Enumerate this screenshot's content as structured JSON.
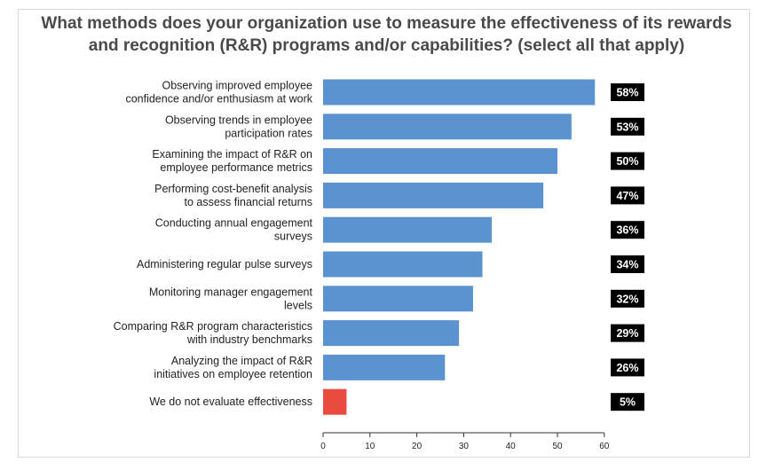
{
  "chart_data": {
    "type": "bar",
    "orientation": "horizontal",
    "title": "What methods does your organization use to measure the effectiveness of its rewards and recognition (R&R) programs and/or capabilities? (select all that apply)",
    "categories": [
      [
        "Observing improved employee",
        "confidence and/or enthusiasm at work"
      ],
      [
        "Observing trends in employee",
        "participation rates"
      ],
      [
        "Examining the impact of R&R on",
        "employee performance metrics"
      ],
      [
        "Performing cost-benefit analysis",
        "to assess financial returns"
      ],
      [
        "Conducting annual engagement",
        "surveys"
      ],
      [
        "Administering regular pulse surveys"
      ],
      [
        "Monitoring manager engagement",
        "levels"
      ],
      [
        "Comparing R&R program characteristics",
        "with industry benchmarks"
      ],
      [
        "Analyzing the impact of R&R",
        "initiatives on employee retention"
      ],
      [
        "We do not evaluate effectiveness"
      ]
    ],
    "values": [
      58,
      53,
      50,
      47,
      36,
      34,
      32,
      29,
      26,
      5
    ],
    "value_labels": [
      "58%",
      "53%",
      "50%",
      "47%",
      "36%",
      "34%",
      "32%",
      "29%",
      "26%",
      "5%"
    ],
    "bar_colors": [
      "#5b93d1",
      "#5b93d1",
      "#5b93d1",
      "#5b93d1",
      "#5b93d1",
      "#5b93d1",
      "#5b93d1",
      "#5b93d1",
      "#5b93d1",
      "#ea4b3f"
    ],
    "label_background": "#000000",
    "xlim": [
      0,
      60
    ],
    "xticks": [
      0,
      10,
      20,
      30,
      40,
      50,
      60
    ],
    "grid": false,
    "legend": "none"
  }
}
